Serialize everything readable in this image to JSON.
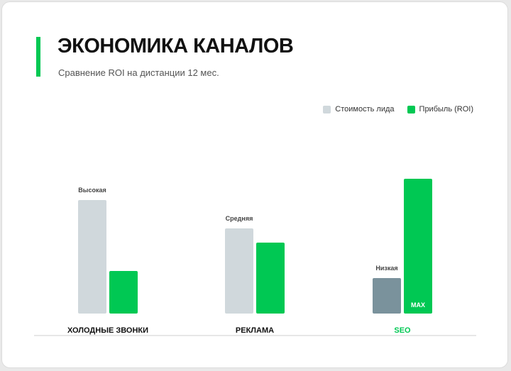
{
  "header": {
    "title": "ЭКОНОМИКА КАНАЛОВ",
    "subtitle": "Сравнение ROI на дистанции 12 мес."
  },
  "colors": {
    "accent": "#00c853",
    "cost": "#d0d8dc",
    "cost_highlight": "#7a929c",
    "profit": "#00c853",
    "text": "#111111",
    "muted": "#555555"
  },
  "chart_data": {
    "type": "bar",
    "categories": [
      "ХОЛОДНЫЕ ЗВОНКИ",
      "РЕКЛАМА",
      "SEO"
    ],
    "highlight_category": "SEO",
    "series": [
      {
        "name": "Стоимость лида",
        "values": [
          80,
          60,
          25
        ],
        "value_labels": [
          "Высокая",
          "Средняя",
          "Низкая"
        ]
      },
      {
        "name": "Прибыль (ROI)",
        "values": [
          30,
          50,
          95
        ],
        "value_labels": [
          "",
          "",
          "MAX"
        ]
      }
    ],
    "ylim": [
      0,
      100
    ],
    "grid": false,
    "legend_position": "top-right"
  }
}
